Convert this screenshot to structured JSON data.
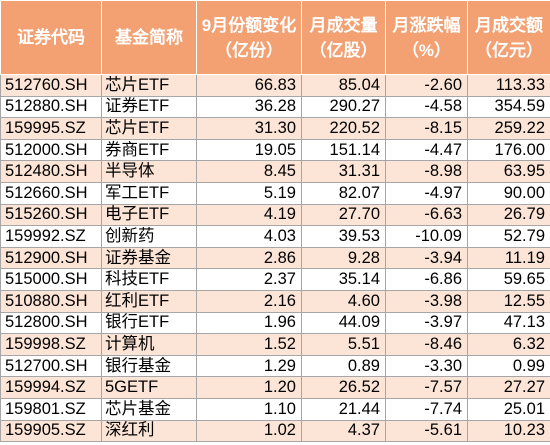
{
  "table": {
    "headers": [
      {
        "line1": "证券代码"
      },
      {
        "line1": "基金简称"
      },
      {
        "line1": "9月份额变化",
        "line2": "（亿份）"
      },
      {
        "line1": "月成交量",
        "line2": "（亿股）"
      },
      {
        "line1": "月涨跌幅",
        "line2": "（%）"
      },
      {
        "line1": "月成交额",
        "line2": "（亿元）"
      }
    ],
    "rows": [
      {
        "code": "512760.SH",
        "name": "芯片ETF",
        "share_change": "66.83",
        "volume": "85.04",
        "change_pct": "-2.60",
        "turnover": "113.33"
      },
      {
        "code": "512880.SH",
        "name": "证券ETF",
        "share_change": "36.28",
        "volume": "290.27",
        "change_pct": "-4.58",
        "turnover": "354.59"
      },
      {
        "code": "159995.SZ",
        "name": "芯片ETF",
        "share_change": "31.30",
        "volume": "220.52",
        "change_pct": "-8.15",
        "turnover": "259.22"
      },
      {
        "code": "512000.SH",
        "name": "券商ETF",
        "share_change": "19.05",
        "volume": "151.14",
        "change_pct": "-4.47",
        "turnover": "176.00"
      },
      {
        "code": "512480.SH",
        "name": "半导体",
        "share_change": "8.45",
        "volume": "31.31",
        "change_pct": "-8.98",
        "turnover": "63.95"
      },
      {
        "code": "512660.SH",
        "name": "军工ETF",
        "share_change": "5.19",
        "volume": "82.07",
        "change_pct": "-4.97",
        "turnover": "90.00"
      },
      {
        "code": "515260.SH",
        "name": "电子ETF",
        "share_change": "4.19",
        "volume": "27.70",
        "change_pct": "-6.63",
        "turnover": "26.79"
      },
      {
        "code": "159992.SZ",
        "name": "创新药",
        "share_change": "4.03",
        "volume": "39.53",
        "change_pct": "-10.09",
        "turnover": "52.79"
      },
      {
        "code": "512900.SH",
        "name": "证券基金",
        "share_change": "2.86",
        "volume": "9.28",
        "change_pct": "-3.94",
        "turnover": "11.19"
      },
      {
        "code": "515000.SH",
        "name": "科技ETF",
        "share_change": "2.37",
        "volume": "35.14",
        "change_pct": "-6.86",
        "turnover": "59.65"
      },
      {
        "code": "510880.SH",
        "name": "红利ETF",
        "share_change": "2.16",
        "volume": "4.60",
        "change_pct": "-3.98",
        "turnover": "12.55"
      },
      {
        "code": "512800.SH",
        "name": "银行ETF",
        "share_change": "1.96",
        "volume": "44.09",
        "change_pct": "-3.97",
        "turnover": "47.13"
      },
      {
        "code": "159998.SZ",
        "name": "计算机",
        "share_change": "1.52",
        "volume": "5.51",
        "change_pct": "-8.46",
        "turnover": "6.32"
      },
      {
        "code": "512700.SH",
        "name": "银行基金",
        "share_change": "1.29",
        "volume": "0.89",
        "change_pct": "-3.30",
        "turnover": "0.99"
      },
      {
        "code": "159994.SZ",
        "name": "5GETF",
        "share_change": "1.20",
        "volume": "26.52",
        "change_pct": "-7.57",
        "turnover": "27.27"
      },
      {
        "code": "159801.SZ",
        "name": "芯片基金",
        "share_change": "1.10",
        "volume": "21.44",
        "change_pct": "-7.74",
        "turnover": "25.01"
      },
      {
        "code": "159905.SZ",
        "name": "深红利",
        "share_change": "1.02",
        "volume": "4.37",
        "change_pct": "-5.61",
        "turnover": "10.23"
      }
    ]
  },
  "colors": {
    "header_bg": "#F3A173",
    "header_text": "#FFFFFF",
    "row_bg": "#FFFFFF",
    "row_alt_bg": "#FCE4D6",
    "grid": "#A6A6A6"
  }
}
